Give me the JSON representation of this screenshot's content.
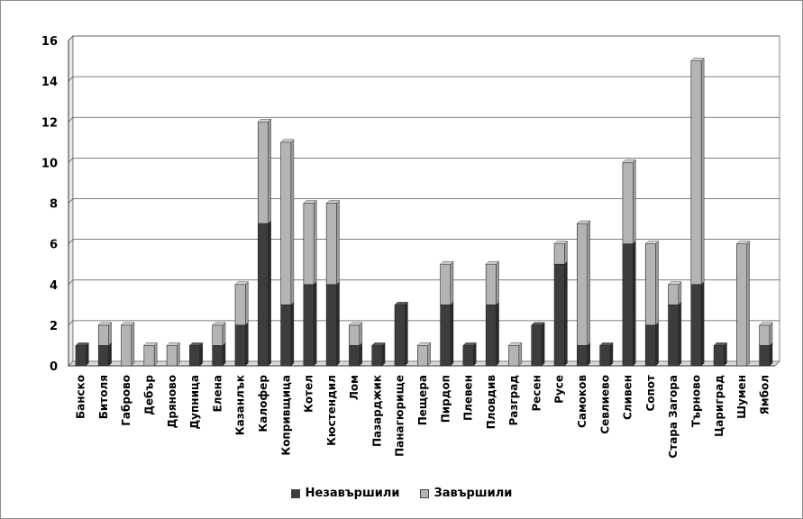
{
  "chart_data": {
    "type": "bar",
    "stacked": true,
    "categories": [
      "Банско",
      "Битоля",
      "Габрово",
      "Дебър",
      "Дряново",
      "Дупница",
      "Елена",
      "Казанлък",
      "Калофер",
      "Копривщица",
      "Котел",
      "Кюстендил",
      "Лом",
      "Пазарджик",
      "Панагюрище",
      "Пещера",
      "Пирдоп",
      "Плевен",
      "Пловдив",
      "Разград",
      "Ресен",
      "Русе",
      "Самоков",
      "Севлиево",
      "Сливен",
      "Сопот",
      "Стара Загора",
      "Търново",
      "Цариград",
      "Шумен",
      "Ямбол"
    ],
    "series": [
      {
        "name": "Незавършили",
        "color": "#3d3d3d",
        "values": [
          1,
          1,
          0,
          0,
          0,
          1,
          1,
          2,
          7,
          3,
          4,
          4,
          1,
          1,
          3,
          0,
          3,
          1,
          3,
          0,
          2,
          5,
          1,
          1,
          6,
          2,
          3,
          4,
          1,
          0,
          1
        ]
      },
      {
        "name": "Завършили",
        "color": "#b4b4b4",
        "values": [
          0,
          1,
          2,
          1,
          1,
          0,
          1,
          2,
          5,
          8,
          4,
          4,
          1,
          0,
          0,
          1,
          2,
          0,
          2,
          1,
          0,
          1,
          6,
          0,
          4,
          4,
          1,
          11,
          0,
          6,
          1
        ]
      }
    ],
    "ylim": [
      0,
      16
    ],
    "yticks": [
      0,
      2,
      4,
      6,
      8,
      10,
      12,
      14,
      16
    ],
    "grid": true,
    "legend_position": "bottom",
    "title": "",
    "xlabel": "",
    "ylabel": ""
  }
}
